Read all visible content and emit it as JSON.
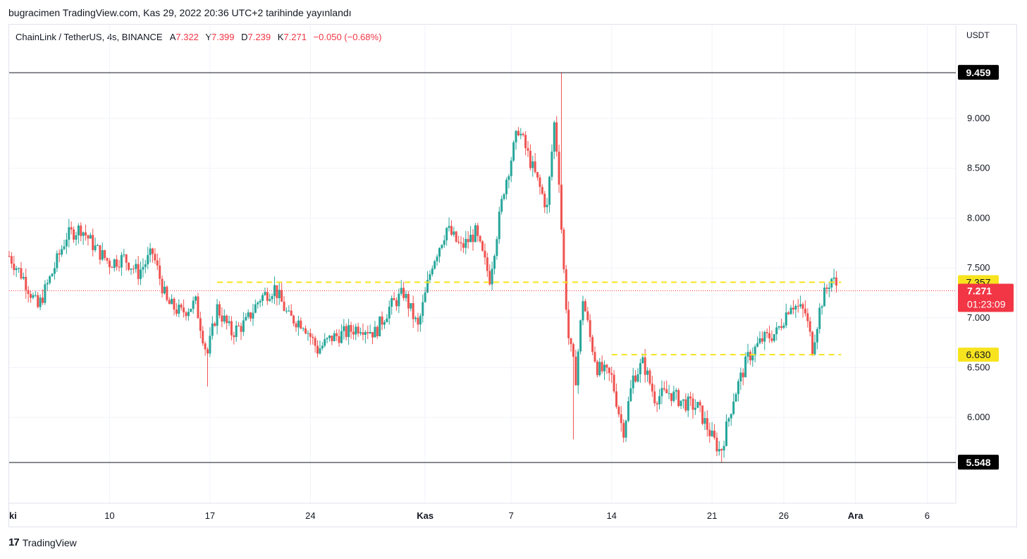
{
  "publish_line": "bugracimen TradingView.com, Kas 29, 2022 20:36 UTC+2 tarihinde yayınlandı",
  "legend": {
    "symbol": "ChainLink / TetherUS, 4s, BINANCE",
    "open_label": "A",
    "open": "7.322",
    "high_label": "Y",
    "high": "7.399",
    "low_label": "D",
    "low": "7.239",
    "close_label": "K",
    "close": "7.271",
    "change": "−0.050 (−0.68%)"
  },
  "currency": "USDT",
  "footer": {
    "logo_mark": "17",
    "logo_text": "TradingView"
  },
  "colors": {
    "up": "#26a69a",
    "down": "#ef5350",
    "hline": "#131722",
    "dashed": "#f7e41f",
    "current": "#f23645"
  },
  "chart_data": {
    "type": "candlestick",
    "title": "ChainLink / TetherUS, 4s, BINANCE",
    "ylabel": "USDT",
    "ylim": [
      5.2,
      9.6
    ],
    "y_ticks": [
      "6.000",
      "6.500",
      "7.000",
      "7.500",
      "8.000",
      "8.500",
      "9.000"
    ],
    "x_ticks": [
      {
        "label": "ki",
        "bold": true,
        "day": 3
      },
      {
        "label": "10",
        "bold": false,
        "day": 10
      },
      {
        "label": "17",
        "bold": false,
        "day": 17
      },
      {
        "label": "24",
        "bold": false,
        "day": 24
      },
      {
        "label": "Kas",
        "bold": true,
        "day": 32
      },
      {
        "label": "7",
        "bold": false,
        "day": 38
      },
      {
        "label": "14",
        "bold": false,
        "day": 45
      },
      {
        "label": "21",
        "bold": false,
        "day": 52
      },
      {
        "label": "26",
        "bold": false,
        "day": 57
      },
      {
        "label": "Ara",
        "bold": true,
        "day": 62
      },
      {
        "label": "6",
        "bold": false,
        "day": 67
      }
    ],
    "horizontal_lines": [
      {
        "value": 9.459,
        "label": "9.459",
        "style": "solid"
      },
      {
        "value": 5.548,
        "label": "5.548",
        "style": "solid"
      }
    ],
    "dashed_levels": [
      {
        "value": 7.357,
        "label": "7.357",
        "from_day": 17.5,
        "to_day": 61
      },
      {
        "value": 6.63,
        "label": "6.630",
        "from_day": 45,
        "to_day": 61
      }
    ],
    "current_price": {
      "value": 7.271,
      "label": "7.271",
      "countdown": "01:23:09"
    },
    "anchor_path": [
      [
        3.0,
        7.62
      ],
      [
        4.0,
        7.4
      ],
      [
        5.0,
        7.1
      ],
      [
        6.0,
        7.45
      ],
      [
        7.0,
        7.82
      ],
      [
        8.0,
        7.9
      ],
      [
        9.0,
        7.7
      ],
      [
        10.0,
        7.55
      ],
      [
        11.0,
        7.6
      ],
      [
        12.0,
        7.45
      ],
      [
        13.0,
        7.65
      ],
      [
        14.0,
        7.15
      ],
      [
        15.0,
        7.05
      ],
      [
        16.0,
        7.15
      ],
      [
        16.8,
        6.62
      ],
      [
        17.5,
        7.1
      ],
      [
        18.5,
        6.85
      ],
      [
        19.5,
        6.95
      ],
      [
        20.5,
        7.2
      ],
      [
        21.5,
        7.3
      ],
      [
        22.5,
        7.0
      ],
      [
        23.5,
        6.95
      ],
      [
        24.5,
        6.68
      ],
      [
        25.5,
        6.8
      ],
      [
        26.5,
        6.85
      ],
      [
        27.5,
        6.92
      ],
      [
        28.5,
        6.85
      ],
      [
        29.5,
        7.1
      ],
      [
        30.5,
        7.25
      ],
      [
        31.5,
        6.9
      ],
      [
        32.5,
        7.55
      ],
      [
        33.5,
        7.9
      ],
      [
        34.5,
        7.7
      ],
      [
        35.5,
        7.85
      ],
      [
        36.5,
        7.4
      ],
      [
        37.5,
        8.3
      ],
      [
        38.5,
        8.9
      ],
      [
        39.5,
        8.5
      ],
      [
        40.5,
        8.1
      ],
      [
        41.0,
        8.95
      ],
      [
        41.3,
        8.5
      ],
      [
        41.6,
        7.6
      ],
      [
        42.0,
        6.8
      ],
      [
        42.5,
        6.4
      ],
      [
        43.0,
        7.2
      ],
      [
        43.5,
        6.8
      ],
      [
        44.0,
        6.5
      ],
      [
        45.0,
        6.4
      ],
      [
        45.8,
        5.85
      ],
      [
        46.5,
        6.4
      ],
      [
        47.2,
        6.55
      ],
      [
        48.0,
        6.2
      ],
      [
        49.0,
        6.25
      ],
      [
        50.0,
        6.15
      ],
      [
        51.0,
        6.1
      ],
      [
        52.0,
        5.8
      ],
      [
        52.6,
        5.65
      ],
      [
        53.5,
        6.2
      ],
      [
        54.5,
        6.6
      ],
      [
        55.5,
        6.78
      ],
      [
        56.5,
        6.85
      ],
      [
        57.5,
        7.15
      ],
      [
        58.5,
        7.05
      ],
      [
        59.0,
        6.7
      ],
      [
        59.6,
        7.15
      ],
      [
        60.3,
        7.4
      ],
      [
        60.8,
        7.3
      ]
    ]
  }
}
